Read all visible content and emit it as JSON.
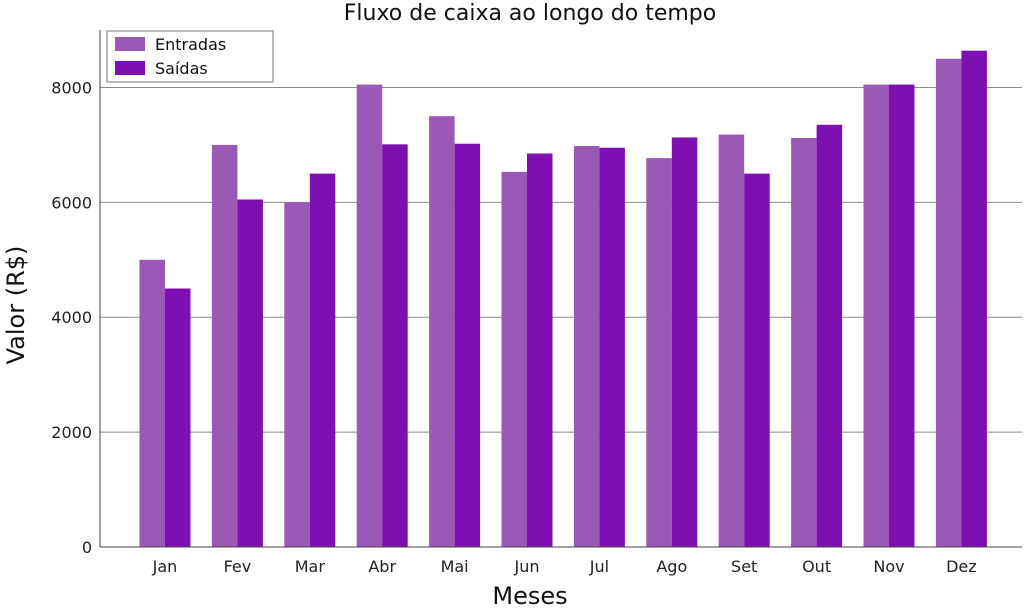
{
  "chart_data": {
    "type": "bar",
    "title": "Fluxo de caixa ao longo do  tempo",
    "xlabel": "Meses",
    "ylabel": "Valor (R$)",
    "categories": [
      "Jan",
      "Fev",
      "Mar",
      "Abr",
      "Mai",
      "Jun",
      "Jul",
      "Ago",
      "Set",
      "Out",
      "Nov",
      "Dez"
    ],
    "series": [
      {
        "name": "Entradas",
        "color": "#9b59b6",
        "values": [
          5000,
          7000,
          6000,
          8050,
          7500,
          6530,
          6980,
          6770,
          7180,
          7120,
          8050,
          8500
        ]
      },
      {
        "name": "Saídas",
        "color": "#7e0fb0",
        "values": [
          4500,
          6050,
          6500,
          7010,
          7020,
          6850,
          6950,
          7130,
          6500,
          7350,
          8050,
          8640
        ]
      }
    ],
    "ylim": [
      0,
      9000
    ],
    "yticks": [
      0,
      2000,
      4000,
      6000,
      8000
    ],
    "grid": "horizontal",
    "legend_position": "top-left"
  }
}
